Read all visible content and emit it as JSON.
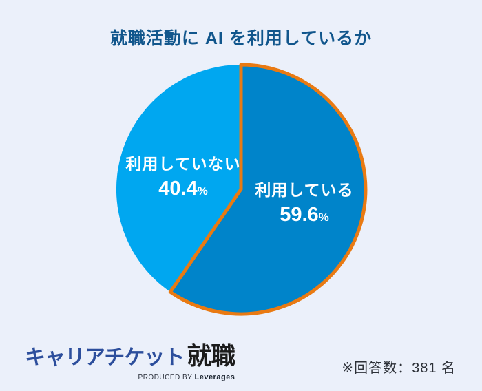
{
  "colors": {
    "background": "#EBF0FA",
    "title_text": "#11568C",
    "slice_label_text": "#FFFFFF",
    "logo_blue": "#2C4E9C",
    "logo_black": "#1B1B1B",
    "note_text": "#2D3138"
  },
  "chart_data": {
    "type": "pie",
    "title": "就職活動に AI を利用しているか",
    "start_angle_deg": -90,
    "direction": "clockwise",
    "legend_position": "none",
    "slices": [
      {
        "key": "using",
        "label": "利用している",
        "value": 59.6,
        "value_text": "59.6",
        "unit": "%",
        "color": "#0084CA",
        "border_color": "#E97A12",
        "border_width": 5
      },
      {
        "key": "not-using",
        "label": "利用していない",
        "value": 40.4,
        "value_text": "40.4",
        "unit": "%",
        "color": "#00A7F0",
        "border_color": null,
        "border_width": 0
      }
    ]
  },
  "footer": {
    "logo": {
      "brand": "キャリアチケット",
      "suffix": "就職",
      "produced_by": "PRODUCED BY ",
      "company": "Leverages"
    },
    "note": "※回答数：381 名"
  }
}
